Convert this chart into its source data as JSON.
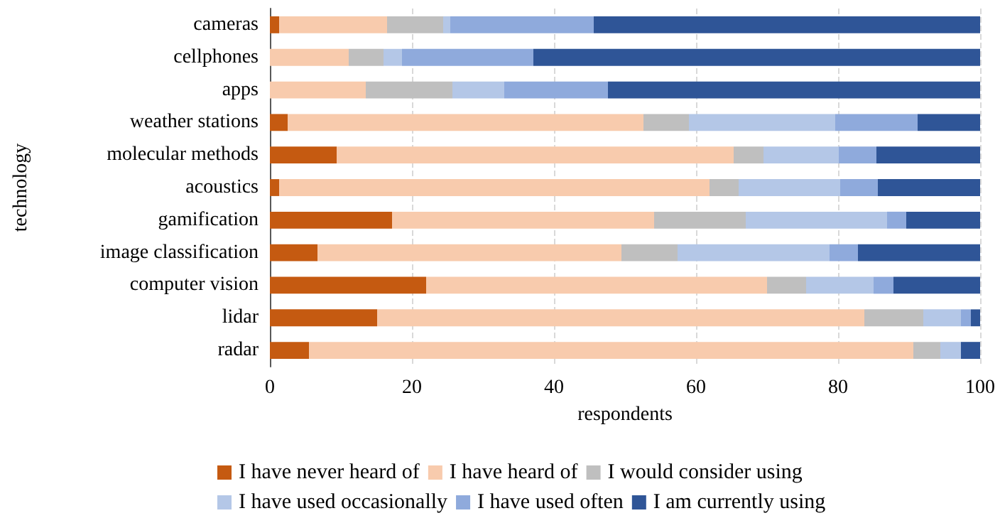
{
  "chart_data": {
    "type": "bar",
    "orientation": "horizontal",
    "stacked": true,
    "xlabel": "respondents",
    "ylabel": "technology",
    "categories": [
      "cameras",
      "cellphones",
      "apps",
      "weather stations",
      "molecular methods",
      "acoustics",
      "gamification",
      "image classification",
      "computer vision",
      "lidar",
      "radar"
    ],
    "series": [
      {
        "name": "I have never heard of",
        "color": "#c55a11",
        "values": [
          1.3,
          0,
          0,
          2.5,
          9.4,
          1.3,
          17.2,
          6.7,
          22.0,
          15.1,
          5.5
        ]
      },
      {
        "name": "I have heard of",
        "color": "#f8cbad",
        "values": [
          15.2,
          11.1,
          13.5,
          50.1,
          55.9,
          60.6,
          36.9,
          42.8,
          48.0,
          68.6,
          85.1
        ]
      },
      {
        "name": "I would consider using",
        "color": "#bfbfbf",
        "values": [
          7.9,
          4.9,
          12.2,
          6.4,
          4.2,
          4.1,
          12.9,
          7.9,
          5.5,
          8.3,
          3.8
        ]
      },
      {
        "name": "I have used occasionally",
        "color": "#b4c7e7",
        "values": [
          1.0,
          2.6,
          7.3,
          20.6,
          10.6,
          14.3,
          19.9,
          21.4,
          9.5,
          5.3,
          2.9
        ]
      },
      {
        "name": "I have used often",
        "color": "#8faadc",
        "values": [
          20.2,
          18.5,
          14.6,
          11.6,
          5.3,
          5.3,
          2.7,
          4.0,
          2.8,
          1.4,
          0
        ]
      },
      {
        "name": "I am currently using",
        "color": "#2f5597",
        "values": [
          54.4,
          62.9,
          52.4,
          8.8,
          14.6,
          14.4,
          10.4,
          17.2,
          12.2,
          1.3,
          2.7
        ]
      }
    ],
    "xlim": [
      0,
      100
    ],
    "xticks": [
      0,
      20,
      40,
      60,
      80,
      100
    ],
    "grid": "x",
    "legend": "bottom"
  }
}
